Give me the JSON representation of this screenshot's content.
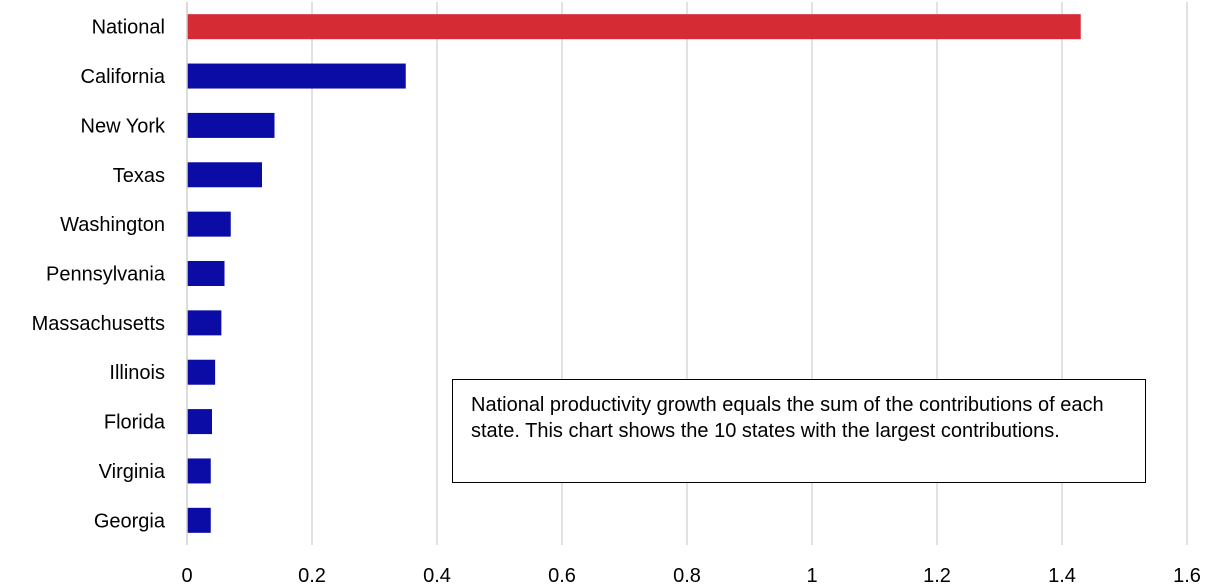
{
  "chart_data": {
    "type": "bar",
    "orientation": "horizontal",
    "categories": [
      "National",
      "California",
      "New York",
      "Texas",
      "Washington",
      "Pennsylvania",
      "Massachusetts",
      "Illinois",
      "Florida",
      "Virginia",
      "Georgia"
    ],
    "values": [
      1.43,
      0.35,
      0.14,
      0.12,
      0.07,
      0.06,
      0.055,
      0.045,
      0.04,
      0.038,
      0.038
    ],
    "xlim": [
      0,
      1.6
    ],
    "xticks": [
      "0",
      "0.2",
      "0.4",
      "0.6",
      "0.8",
      "1",
      "1.2",
      "1.4",
      "1.6"
    ],
    "grid": "vertical",
    "colors": {
      "highlight": "#d52b35",
      "bar": "#0b0ba6",
      "grid": "#d9d9d9"
    },
    "annotation": "National productivity growth equals the sum of the contributions of each state. This chart shows the 10 states with the largest contributions."
  }
}
